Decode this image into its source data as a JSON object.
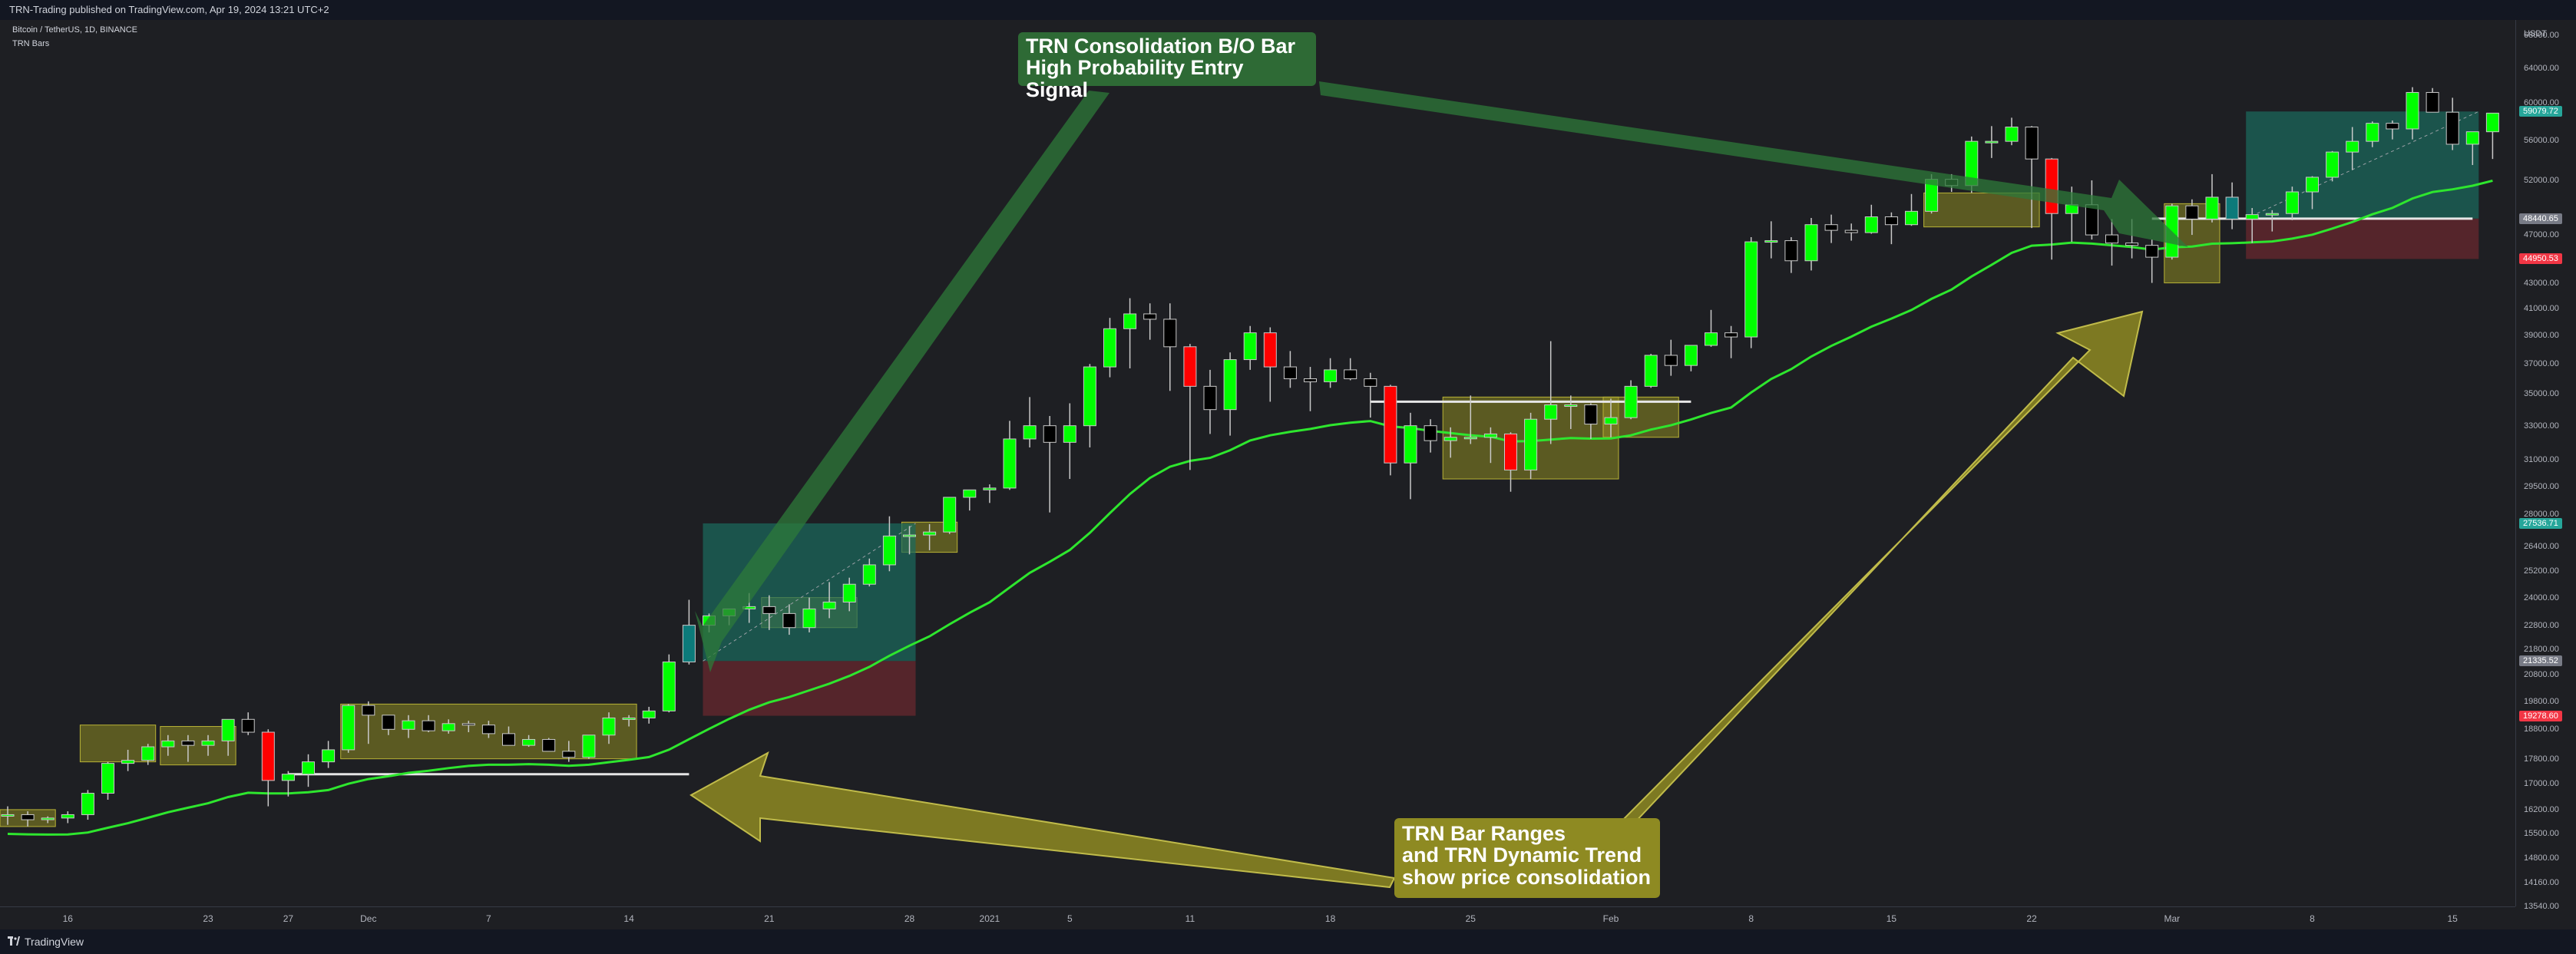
{
  "topbar": {
    "text": "TRN-Trading published on TradingView.com, Apr 19, 2024 13:21 UTC+2"
  },
  "symbol_title": "Bitcoin / TetherUS, 1D, BINANCE",
  "indicator_name": "TRN Bars",
  "bottombar": {
    "logo_text": "TradingView"
  },
  "callouts": {
    "top": [
      "TRN Consolidation B/O Bar",
      "High Probability Entry Signal"
    ],
    "bottom": [
      "TRN Bar Ranges",
      "and TRN Dynamic Trend",
      "show price consolidation"
    ]
  },
  "price_axis": {
    "currency": "USDT",
    "ticks": [
      "68000.00",
      "64000.00",
      "60000.00",
      "56000.00",
      "52000.00",
      "47000.00",
      "43000.00",
      "41000.00",
      "39000.00",
      "37000.00",
      "35000.00",
      "33000.00",
      "31000.00",
      "29500.00",
      "28000.00",
      "26400.00",
      "25200.00",
      "24000.00",
      "22800.00",
      "21800.00",
      "20800.00",
      "19800.00",
      "18800.00",
      "17800.00",
      "17000.00",
      "16200.00",
      "15500.00",
      "14800.00",
      "14160.00",
      "13540.00"
    ],
    "badges": [
      {
        "label": "59079.72",
        "color": "#26a69a",
        "price": 59079.72
      },
      {
        "label": "48440.65",
        "color": "#787b86",
        "price": 48440.65
      },
      {
        "label": "44950.53",
        "color": "#f23645",
        "price": 44950.53
      },
      {
        "label": "27536.71",
        "color": "#26a69a",
        "price": 27536.71
      },
      {
        "label": "21335.52",
        "color": "#787b86",
        "price": 21335.52
      },
      {
        "label": "19278.60",
        "color": "#f23645",
        "price": 19278.6
      }
    ]
  },
  "time_axis": {
    "ticks": [
      "16",
      "23",
      "27",
      "Dec",
      "7",
      "14",
      "21",
      "28",
      "2021",
      "5",
      "11",
      "18",
      "25",
      "Feb",
      "8",
      "15",
      "22",
      "Mar",
      "8",
      "15"
    ]
  },
  "colors": {
    "bull": "#00ff00",
    "bear": "#000000",
    "strong_bear": "#ff0000",
    "neutral": "#c8c8c8",
    "breakout": "#0c7a7a",
    "trend": "#2ee62e",
    "range_fill": "#8e8a22",
    "long_tp": "#1a6b5e",
    "long_sl": "#7a2a30"
  },
  "chart_data": {
    "type": "candlestick",
    "title": "Bitcoin / TetherUS, 1D, BINANCE",
    "y_scale": "log",
    "ylim": [
      13540,
      70000
    ],
    "x": [
      "2020-11-13",
      "2020-11-14",
      "2020-11-15",
      "2020-11-16",
      "2020-11-17",
      "2020-11-18",
      "2020-11-19",
      "2020-11-20",
      "2020-11-21",
      "2020-11-22",
      "2020-11-23",
      "2020-11-24",
      "2020-11-25",
      "2020-11-26",
      "2020-11-27",
      "2020-11-28",
      "2020-11-29",
      "2020-11-30",
      "2020-12-01",
      "2020-12-02",
      "2020-12-03",
      "2020-12-04",
      "2020-12-05",
      "2020-12-06",
      "2020-12-07",
      "2020-12-08",
      "2020-12-09",
      "2020-12-10",
      "2020-12-11",
      "2020-12-12",
      "2020-12-13",
      "2020-12-14",
      "2020-12-15",
      "2020-12-16",
      "2020-12-17",
      "2020-12-18",
      "2020-12-19",
      "2020-12-20",
      "2020-12-21",
      "2020-12-22",
      "2020-12-23",
      "2020-12-24",
      "2020-12-25",
      "2020-12-26",
      "2020-12-27",
      "2020-12-28",
      "2020-12-29",
      "2020-12-30",
      "2020-12-31",
      "2021-01-01",
      "2021-01-02",
      "2021-01-03",
      "2021-01-04",
      "2021-01-05",
      "2021-01-06",
      "2021-01-07",
      "2021-01-08",
      "2021-01-09",
      "2021-01-10",
      "2021-01-11",
      "2021-01-12",
      "2021-01-13",
      "2021-01-14",
      "2021-01-15",
      "2021-01-16",
      "2021-01-17",
      "2021-01-18",
      "2021-01-19",
      "2021-01-20",
      "2021-01-21",
      "2021-01-22",
      "2021-01-23",
      "2021-01-24",
      "2021-01-25",
      "2021-01-26",
      "2021-01-27",
      "2021-01-28",
      "2021-01-29",
      "2021-01-30",
      "2021-01-31",
      "2021-02-01",
      "2021-02-02",
      "2021-02-03",
      "2021-02-04",
      "2021-02-05",
      "2021-02-06",
      "2021-02-07",
      "2021-02-08",
      "2021-02-09",
      "2021-02-10",
      "2021-02-11",
      "2021-02-12",
      "2021-02-13",
      "2021-02-14",
      "2021-02-15",
      "2021-02-16",
      "2021-02-17",
      "2021-02-18",
      "2021-02-19",
      "2021-02-20",
      "2021-02-21",
      "2021-02-22",
      "2021-02-23",
      "2021-02-24",
      "2021-02-25",
      "2021-02-26",
      "2021-02-27",
      "2021-02-28",
      "2021-03-01",
      "2021-03-02",
      "2021-03-03",
      "2021-03-04",
      "2021-03-05",
      "2021-03-06",
      "2021-03-07",
      "2021-03-08",
      "2021-03-09",
      "2021-03-10",
      "2021-03-11",
      "2021-03-12",
      "2021-03-13",
      "2021-03-14",
      "2021-03-15",
      "2021-03-16",
      "2021-03-17"
    ],
    "series": [
      {
        "name": "BTCUSDT",
        "ohlc": [
          [
            16050,
            16300,
            15750,
            16050
          ],
          [
            16050,
            16150,
            15700,
            15900
          ],
          [
            15900,
            16000,
            15800,
            15950
          ],
          [
            15950,
            16150,
            15800,
            16050
          ],
          [
            16050,
            16800,
            15900,
            16700
          ],
          [
            16700,
            17700,
            16500,
            17650
          ],
          [
            17650,
            18100,
            17400,
            17750
          ],
          [
            17750,
            18300,
            17600,
            18200
          ],
          [
            18200,
            18600,
            17900,
            18400
          ],
          [
            18400,
            18600,
            17700,
            18250
          ],
          [
            18250,
            18600,
            17900,
            18400
          ],
          [
            18400,
            18950,
            17900,
            19150
          ],
          [
            19150,
            19400,
            18600,
            18700
          ],
          [
            18700,
            18800,
            16300,
            17100
          ],
          [
            17100,
            17400,
            16600,
            17300
          ],
          [
            17300,
            17950,
            16900,
            17700
          ],
          [
            17700,
            18400,
            17500,
            18100
          ],
          [
            18100,
            19700,
            18000,
            19650
          ],
          [
            19650,
            19800,
            18300,
            19300
          ],
          [
            19300,
            19300,
            18600,
            18800
          ],
          [
            18800,
            19300,
            18500,
            19100
          ],
          [
            19100,
            19300,
            18700,
            18750
          ],
          [
            18750,
            19150,
            18650,
            19000
          ],
          [
            19000,
            19100,
            18700,
            18950
          ],
          [
            18950,
            19100,
            18500,
            18650
          ],
          [
            18650,
            18900,
            18500,
            18250
          ],
          [
            18250,
            18600,
            18200,
            18450
          ],
          [
            18450,
            18500,
            18200,
            18050
          ],
          [
            18050,
            18400,
            17700,
            17850
          ],
          [
            17850,
            18500,
            17800,
            18600
          ],
          [
            18600,
            19400,
            18300,
            19200
          ],
          [
            19200,
            19300,
            18900,
            19200
          ],
          [
            19200,
            19600,
            19000,
            19450
          ],
          [
            19450,
            21600,
            19400,
            21300
          ],
          [
            21300,
            23900,
            21200,
            22800
          ],
          [
            22800,
            23300,
            22500,
            23200
          ],
          [
            23200,
            23300,
            22800,
            23500
          ],
          [
            23500,
            24200,
            22900,
            23600
          ],
          [
            23600,
            24100,
            22600,
            23300
          ],
          [
            23300,
            23700,
            22400,
            22700
          ],
          [
            22700,
            24000,
            22500,
            23500
          ],
          [
            23500,
            24700,
            23100,
            23800
          ],
          [
            23800,
            24900,
            23400,
            24600
          ],
          [
            24600,
            25800,
            24500,
            25500
          ],
          [
            25500,
            27900,
            25200,
            26900
          ],
          [
            26900,
            27400,
            26000,
            26950
          ],
          [
            26950,
            27500,
            26200,
            27100
          ],
          [
            27100,
            28900,
            27000,
            28900
          ],
          [
            28900,
            29300,
            28200,
            29300
          ],
          [
            29300,
            29600,
            28600,
            29400
          ],
          [
            29400,
            33300,
            29300,
            32200
          ],
          [
            32200,
            34800,
            31700,
            33000
          ],
          [
            33000,
            33600,
            28100,
            32000
          ],
          [
            32000,
            34400,
            29900,
            33000
          ],
          [
            33000,
            37000,
            31700,
            36800
          ],
          [
            36800,
            40300,
            36100,
            39500
          ],
          [
            39500,
            41800,
            36700,
            40600
          ],
          [
            40600,
            41400,
            38700,
            40200
          ],
          [
            40200,
            41400,
            35200,
            38200
          ],
          [
            38200,
            38400,
            30400,
            35500
          ],
          [
            35500,
            36600,
            32500,
            34000
          ],
          [
            34000,
            37800,
            32400,
            37300
          ],
          [
            37300,
            39700,
            36600,
            39200
          ],
          [
            39200,
            39600,
            34500,
            36800
          ],
          [
            36800,
            37900,
            35400,
            36000
          ],
          [
            36000,
            36800,
            33900,
            35800
          ],
          [
            35800,
            37400,
            35400,
            36600
          ],
          [
            36600,
            37400,
            35900,
            36000
          ],
          [
            36000,
            36400,
            33500,
            35500
          ],
          [
            35500,
            35600,
            30100,
            30800
          ],
          [
            30800,
            33800,
            28800,
            33000
          ],
          [
            33000,
            33400,
            31400,
            32100
          ],
          [
            32100,
            32900,
            31100,
            32300
          ],
          [
            32300,
            34900,
            31900,
            32300
          ],
          [
            32300,
            32900,
            30800,
            32500
          ],
          [
            32500,
            32600,
            29200,
            30400
          ],
          [
            30400,
            33800,
            29900,
            33400
          ],
          [
            33400,
            38600,
            31900,
            34300
          ],
          [
            34300,
            34900,
            32800,
            34300
          ],
          [
            34300,
            34400,
            32200,
            33100
          ],
          [
            33100,
            34700,
            32300,
            33500
          ],
          [
            33500,
            35900,
            33400,
            35500
          ],
          [
            35500,
            37700,
            35400,
            37600
          ],
          [
            37600,
            38700,
            36200,
            36900
          ],
          [
            36900,
            38300,
            36500,
            38300
          ],
          [
            38300,
            40900,
            38200,
            39200
          ],
          [
            39200,
            39700,
            37400,
            38900
          ],
          [
            38900,
            46800,
            38100,
            46400
          ],
          [
            46400,
            48200,
            45000,
            46500
          ],
          [
            46500,
            46800,
            43800,
            44800
          ],
          [
            44800,
            48500,
            44000,
            47900
          ],
          [
            47900,
            48800,
            46300,
            47400
          ],
          [
            47400,
            48000,
            46500,
            47200
          ],
          [
            47200,
            49700,
            47100,
            48600
          ],
          [
            48600,
            49000,
            46200,
            47900
          ],
          [
            47900,
            50700,
            47800,
            49100
          ],
          [
            49100,
            52600,
            48900,
            52100
          ],
          [
            52100,
            52600,
            50900,
            51500
          ],
          [
            51500,
            56400,
            50800,
            55900
          ],
          [
            55900,
            57500,
            54200,
            55900
          ],
          [
            55900,
            58400,
            55500,
            57400
          ],
          [
            57400,
            57500,
            47600,
            54100
          ],
          [
            54100,
            54200,
            44900,
            48900
          ],
          [
            48900,
            51400,
            46400,
            49700
          ],
          [
            49700,
            52000,
            46600,
            47000
          ],
          [
            47000,
            48400,
            44400,
            46300
          ],
          [
            46300,
            48400,
            45000,
            46100
          ],
          [
            46100,
            46600,
            43000,
            45100
          ],
          [
            45100,
            49800,
            44900,
            49600
          ],
          [
            49600,
            50200,
            47000,
            48400
          ],
          [
            48400,
            52600,
            48100,
            50400
          ],
          [
            50400,
            51800,
            47500,
            48400
          ],
          [
            48400,
            49400,
            46300,
            48800
          ],
          [
            48800,
            49200,
            47300,
            48900
          ],
          [
            48900,
            51400,
            48300,
            50900
          ],
          [
            50900,
            52400,
            49300,
            52300
          ],
          [
            52300,
            54900,
            51900,
            54800
          ],
          [
            54800,
            57400,
            53000,
            55900
          ],
          [
            55900,
            58000,
            55300,
            57800
          ],
          [
            57800,
            58100,
            56100,
            57200
          ],
          [
            57200,
            61800,
            56100,
            61200
          ],
          [
            61200,
            61700,
            59000,
            59000
          ],
          [
            59000,
            60600,
            55000,
            55600
          ],
          [
            55600,
            56900,
            53500,
            56900
          ],
          [
            56900,
            58900,
            54100,
            58900
          ]
        ]
      }
    ],
    "trend_line": {
      "name": "TRN Dynamic Trend"
    },
    "annotations": [
      "TRN Consolidation B/O Bar",
      "High Probability Entry Signal",
      "TRN Bar Ranges",
      "and TRN Dynamic Trend",
      "show price consolidation"
    ]
  }
}
